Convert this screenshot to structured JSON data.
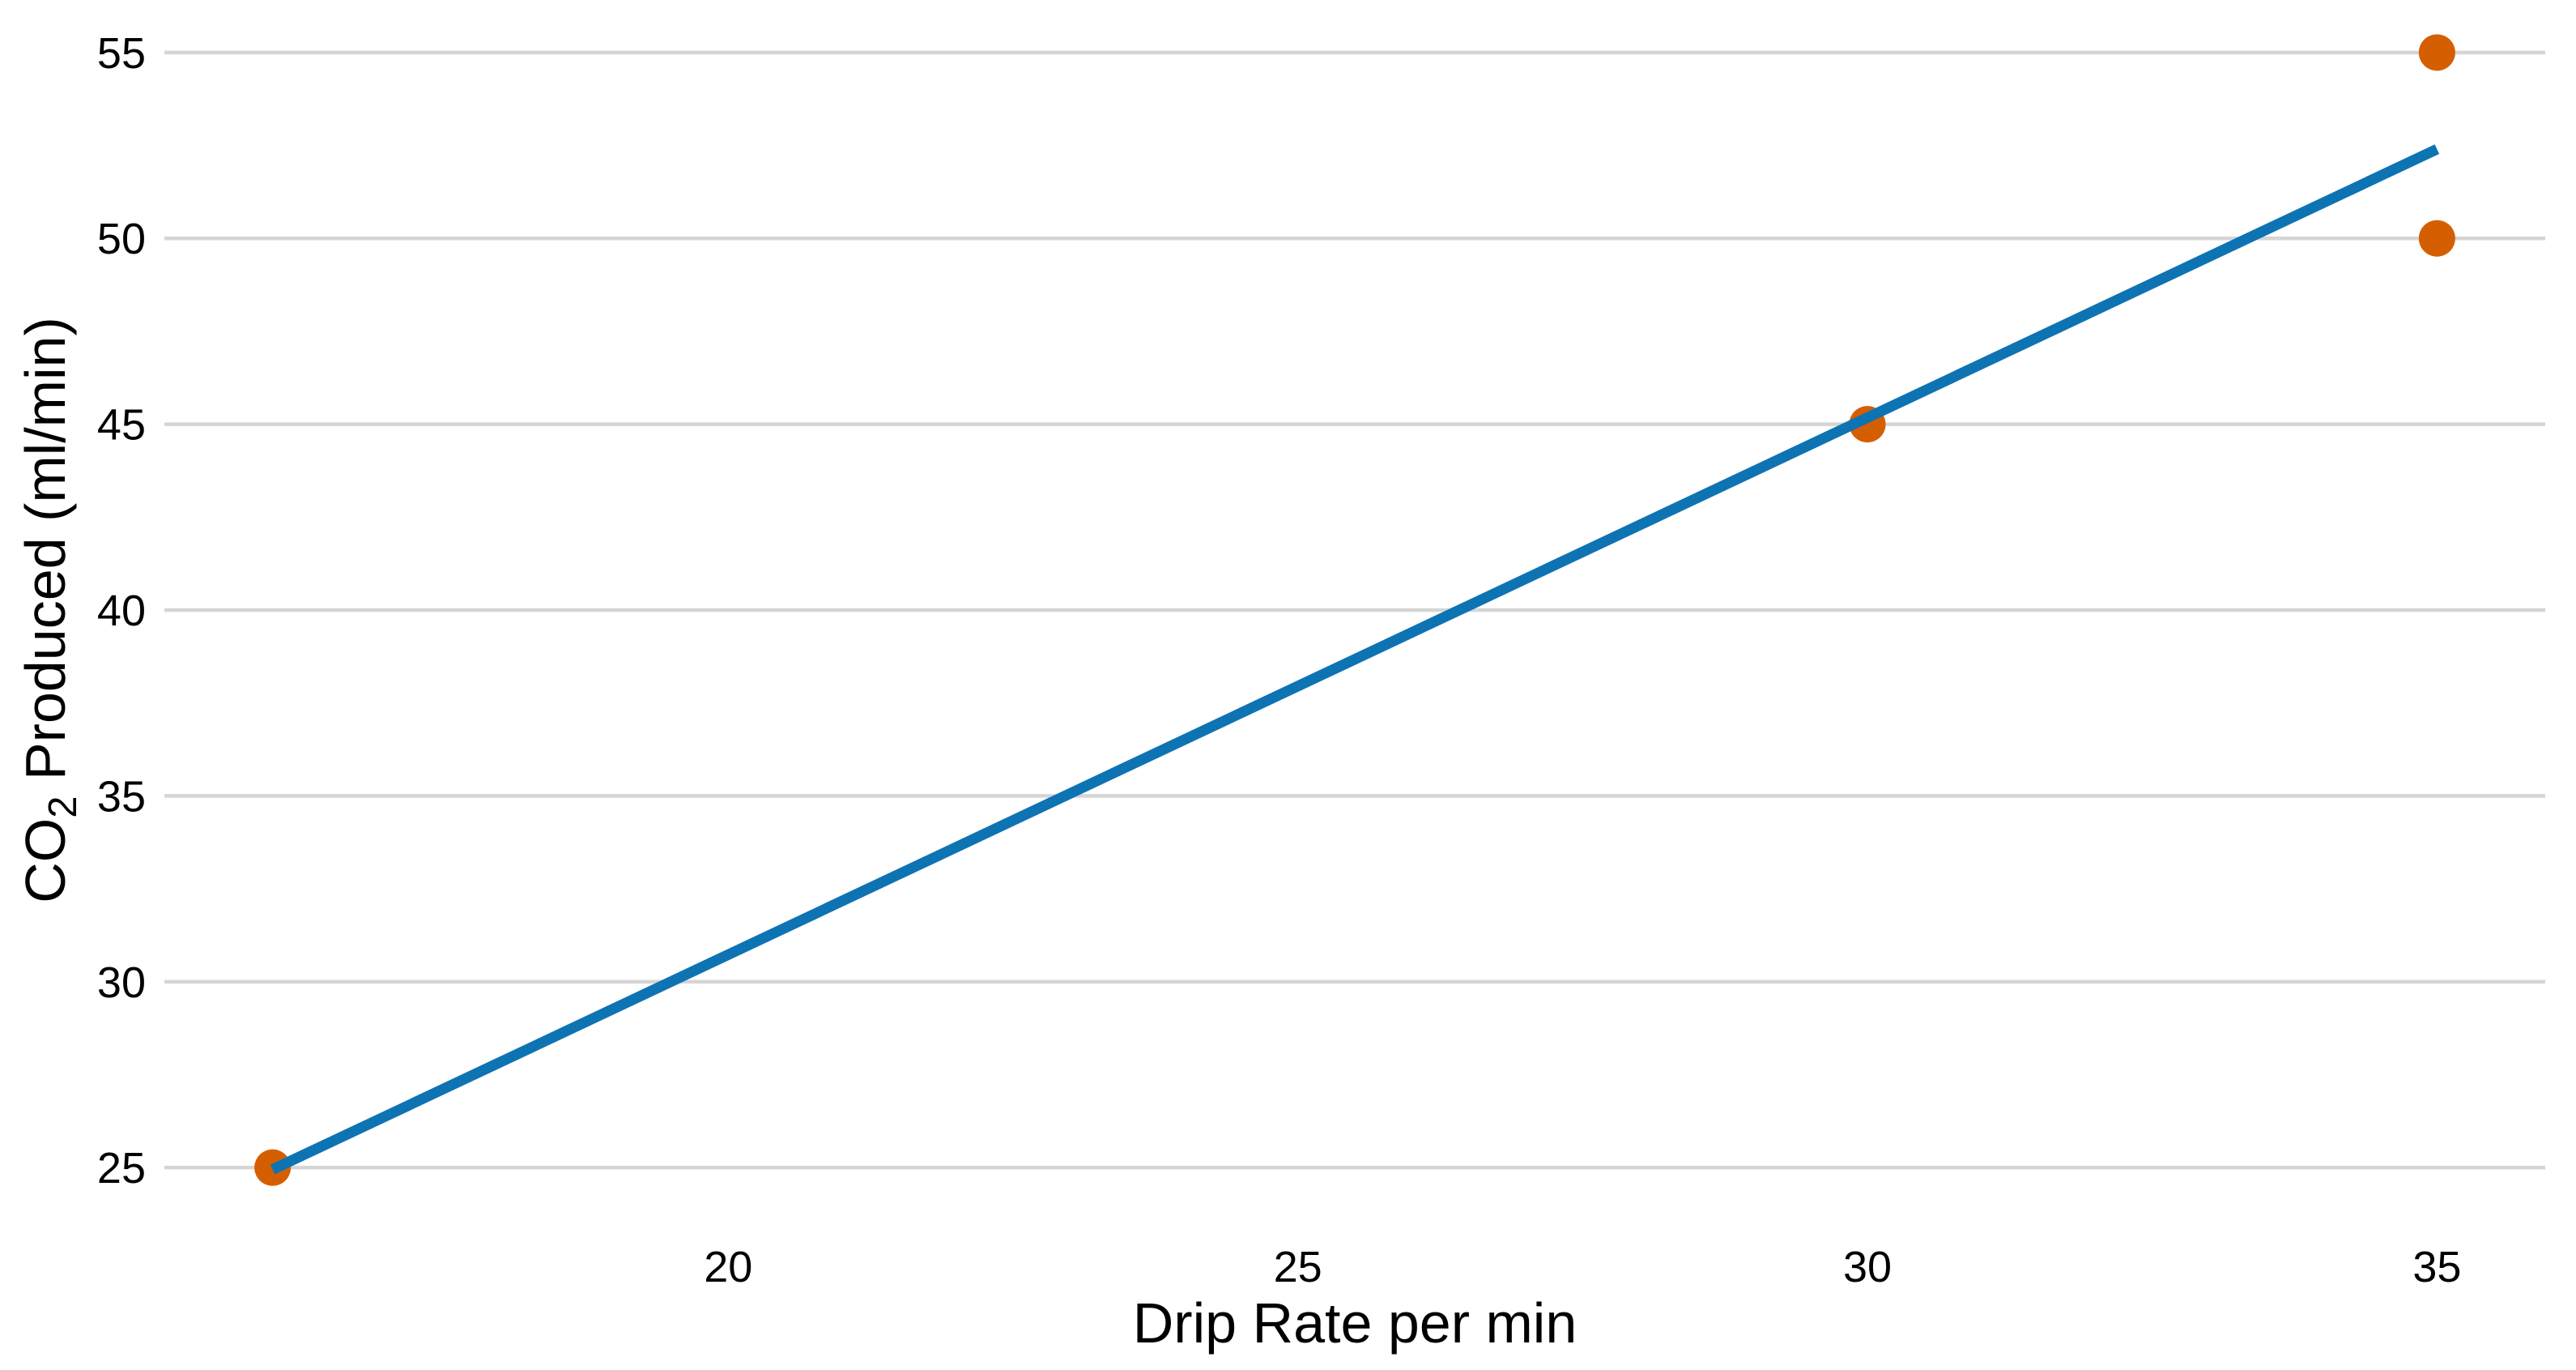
{
  "chart_data": {
    "type": "scatter",
    "title": "",
    "xlabel": "Drip Rate per min",
    "ylabel": "CO₂ Produced (ml/min)",
    "ylabel_parts": {
      "prefix": "CO",
      "subscript": "2",
      "suffix": " Produced (ml/min)"
    },
    "points": [
      {
        "x": 16,
        "y": 25
      },
      {
        "x": 30,
        "y": 45
      },
      {
        "x": 35,
        "y": 50
      },
      {
        "x": 35,
        "y": 55
      }
    ],
    "trend_line": {
      "x1": 16,
      "y1": 24.95,
      "x2": 35,
      "y2": 52.4
    },
    "xticks": [
      20,
      25,
      30,
      35
    ],
    "yticks": [
      25,
      30,
      35,
      40,
      45,
      50,
      55
    ],
    "xlim": [
      15.05,
      35.95
    ],
    "ylim": [
      23.5,
      56.5
    ],
    "grid": {
      "horizontal": true,
      "vertical": false
    },
    "legend": {
      "visible": false
    },
    "colors": {
      "point": "#d55e00",
      "trend_line": "#0e73b3",
      "gridline": "#d5d5d5",
      "axis_text": "#000000",
      "background": "#ffffff"
    }
  }
}
